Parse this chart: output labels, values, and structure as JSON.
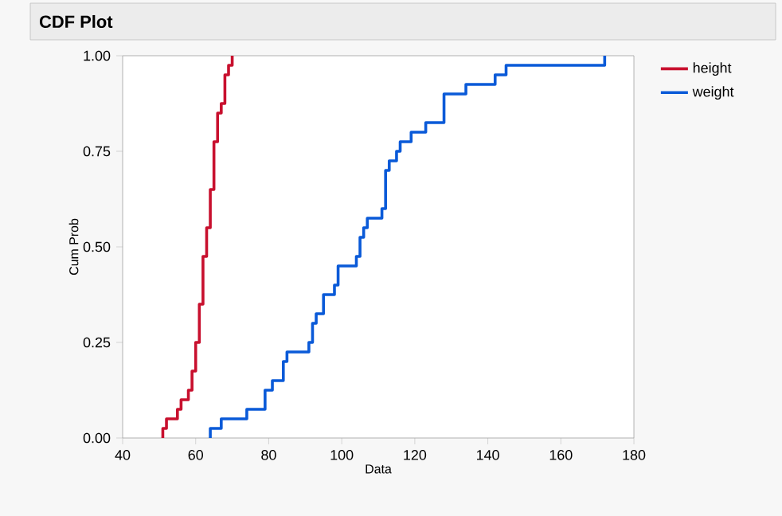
{
  "chart_data": {
    "type": "step",
    "title": "CDF Plot",
    "xlabel": "Data",
    "ylabel": "Cum Prob",
    "xlim": [
      40,
      180
    ],
    "xticks": [
      40,
      60,
      80,
      100,
      120,
      140,
      160,
      180
    ],
    "ylim": [
      0,
      1
    ],
    "yticks": [
      {
        "value": 0,
        "label": "0.00"
      },
      {
        "value": 0.25,
        "label": "0.25"
      },
      {
        "value": 0.5,
        "label": "0.50"
      },
      {
        "value": 0.75,
        "label": "0.75"
      },
      {
        "value": 1,
        "label": "1.00"
      }
    ],
    "legend": "right",
    "series": [
      {
        "name": "height",
        "color": "#c8102e",
        "x": [
          51,
          51,
          52,
          55,
          56,
          58,
          59,
          60,
          61,
          62,
          63,
          64,
          65,
          66,
          67,
          68,
          69,
          70
        ],
        "values": [
          0,
          0.025,
          0.05,
          0.075,
          0.1,
          0.125,
          0.175,
          0.25,
          0.35,
          0.475,
          0.55,
          0.65,
          0.775,
          0.85,
          0.875,
          0.95,
          0.975,
          1.0
        ]
      },
      {
        "name": "weight",
        "color": "#0a5ad8",
        "x": [
          64,
          64,
          67,
          74,
          79,
          81,
          84,
          85,
          91,
          92,
          93,
          95,
          98,
          99,
          104,
          105,
          106,
          107,
          111,
          112,
          113,
          115,
          116,
          119,
          123,
          128,
          134,
          142,
          145,
          172
        ],
        "values": [
          0,
          0.025,
          0.05,
          0.075,
          0.125,
          0.15,
          0.2,
          0.225,
          0.25,
          0.3,
          0.325,
          0.375,
          0.4,
          0.45,
          0.475,
          0.525,
          0.55,
          0.575,
          0.6,
          0.7,
          0.725,
          0.75,
          0.775,
          0.8,
          0.825,
          0.9,
          0.925,
          0.95,
          0.975,
          1.0
        ]
      }
    ]
  }
}
